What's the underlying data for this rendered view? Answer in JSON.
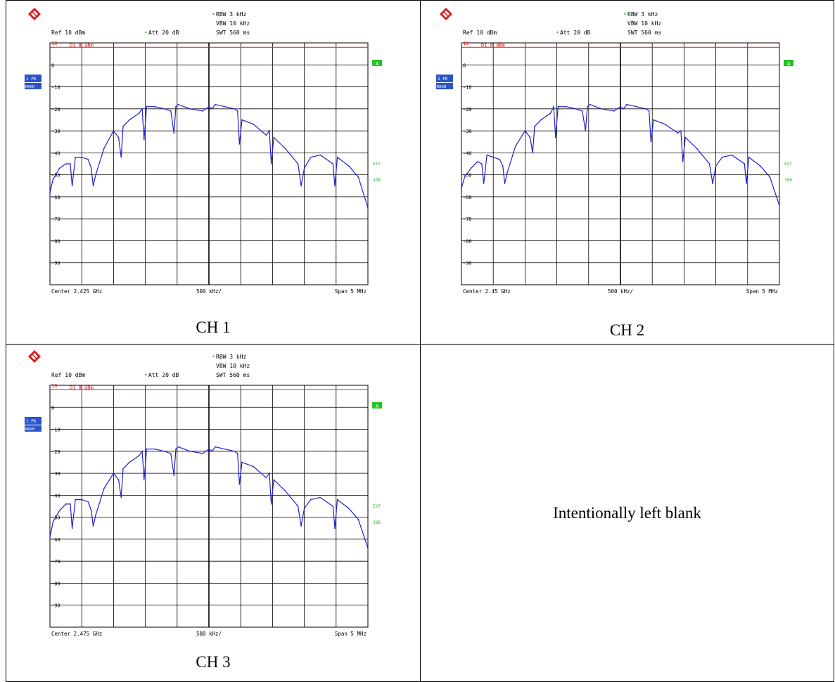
{
  "blank_panel": {
    "text": "Intentionally left blank"
  },
  "common": {
    "rbw": "RBW 3 kHz",
    "vbw": "VBW 10 kHz",
    "swt": "SWT 560 ms",
    "ref": "Ref  10 dBm",
    "att": "Att  20 dB",
    "limit_line": "D1  8 dBm",
    "trace_badge_1": "1 PK",
    "trace_badge_2": "MAXH",
    "marker_a": "A",
    "ext": "EXT",
    "db3": "3DB",
    "per_div": "500 kHz/",
    "span": "Span 5 MHz",
    "colors": {
      "trace": "#1f1fd0",
      "limit": "#d02020",
      "badge": "#2a55c8",
      "status": "#22c422"
    }
  },
  "chart_data": [
    {
      "type": "line",
      "caption": "CH 1",
      "center": "Center 2.425 GHz",
      "xlabel": "",
      "ylabel": "",
      "xlim": [
        -2.5,
        2.5
      ],
      "ylim": [
        -100,
        10
      ],
      "y_ticks": [
        "10",
        "0",
        "-10",
        "-20",
        "-30",
        "-40",
        "-50",
        "-60",
        "-70",
        "-80",
        "-90"
      ],
      "limit_dbm": 8,
      "series": [
        {
          "x": [
            -2.5,
            -2.45,
            -2.35,
            -2.25,
            -2.18,
            -2.15,
            -2.1,
            -2.0,
            -1.9,
            -1.85,
            -1.82,
            -1.78,
            -1.65,
            -1.5,
            -1.42,
            -1.38,
            -1.35,
            -1.25,
            -1.1,
            -1.05,
            -1.02,
            -0.98,
            -0.85,
            -0.7,
            -0.6,
            -0.55,
            -0.52,
            -0.48,
            -0.3,
            -0.1,
            0.0,
            0.05,
            0.1,
            0.4,
            0.45,
            0.48,
            0.52,
            0.7,
            0.9,
            0.95,
            0.98,
            1.02,
            1.2,
            1.4,
            1.45,
            1.5,
            1.6,
            1.75,
            1.95,
            1.98,
            2.02,
            2.2,
            2.35,
            2.5
          ],
          "y": [
            -58,
            -52,
            -47,
            -45,
            -45,
            -55,
            -42,
            -42,
            -43,
            -47,
            -55,
            -50,
            -38,
            -30,
            -33,
            -42,
            -28,
            -25,
            -22,
            -20,
            -34,
            -19,
            -19,
            -20,
            -21,
            -31,
            -19,
            -18,
            -20,
            -21,
            -19,
            -20,
            -18,
            -20,
            -21,
            -36,
            -25,
            -27,
            -32,
            -30,
            -45,
            -33,
            -38,
            -45,
            -55,
            -47,
            -42,
            -41,
            -45,
            -55,
            -42,
            -46,
            -51,
            -65
          ]
        }
      ]
    },
    {
      "type": "line",
      "caption": "CH 2",
      "center": "Center 2.45 GHz",
      "xlabel": "",
      "ylabel": "",
      "xlim": [
        -2.5,
        2.5
      ],
      "ylim": [
        -100,
        10
      ],
      "y_ticks": [
        "10",
        "0",
        "-10",
        "-20",
        "-30",
        "-40",
        "-50",
        "-60",
        "-70",
        "-80",
        "-90"
      ],
      "limit_dbm": 8,
      "series": [
        {
          "x": [
            -2.5,
            -2.45,
            -2.35,
            -2.25,
            -2.18,
            -2.15,
            -2.1,
            -2.0,
            -1.9,
            -1.85,
            -1.82,
            -1.78,
            -1.65,
            -1.5,
            -1.42,
            -1.38,
            -1.35,
            -1.25,
            -1.1,
            -1.05,
            -1.02,
            -0.98,
            -0.85,
            -0.7,
            -0.6,
            -0.55,
            -0.52,
            -0.48,
            -0.3,
            -0.1,
            0.0,
            0.05,
            0.1,
            0.4,
            0.45,
            0.48,
            0.52,
            0.7,
            0.9,
            0.95,
            0.98,
            1.02,
            1.2,
            1.4,
            1.45,
            1.5,
            1.6,
            1.75,
            1.95,
            1.98,
            2.02,
            2.2,
            2.35,
            2.5
          ],
          "y": [
            -56,
            -51,
            -47,
            -44,
            -45,
            -54,
            -41,
            -42,
            -43,
            -46,
            -54,
            -49,
            -37,
            -30,
            -33,
            -40,
            -28,
            -25,
            -22,
            -19,
            -33,
            -19,
            -19,
            -20,
            -21,
            -30,
            -19,
            -18,
            -20,
            -21,
            -19,
            -20,
            -18,
            -20,
            -21,
            -35,
            -25,
            -27,
            -31,
            -30,
            -44,
            -33,
            -38,
            -45,
            -54,
            -46,
            -42,
            -41,
            -45,
            -54,
            -42,
            -46,
            -51,
            -64
          ]
        }
      ]
    },
    {
      "type": "line",
      "caption": "CH 3",
      "center": "Center 2.475 GHz",
      "xlabel": "",
      "ylabel": "",
      "xlim": [
        -2.5,
        2.5
      ],
      "ylim": [
        -100,
        10
      ],
      "y_ticks": [
        "10",
        "0",
        "-10",
        "-20",
        "-30",
        "-40",
        "-50",
        "-60",
        "-70",
        "-80",
        "-90"
      ],
      "limit_dbm": 8,
      "series": [
        {
          "x": [
            -2.5,
            -2.45,
            -2.35,
            -2.25,
            -2.18,
            -2.15,
            -2.1,
            -2.0,
            -1.9,
            -1.85,
            -1.82,
            -1.78,
            -1.65,
            -1.5,
            -1.42,
            -1.38,
            -1.35,
            -1.25,
            -1.1,
            -1.05,
            -1.02,
            -0.98,
            -0.85,
            -0.7,
            -0.6,
            -0.55,
            -0.52,
            -0.48,
            -0.3,
            -0.1,
            0.0,
            0.05,
            0.1,
            0.4,
            0.45,
            0.48,
            0.52,
            0.7,
            0.9,
            0.95,
            0.98,
            1.02,
            1.2,
            1.4,
            1.45,
            1.5,
            1.6,
            1.75,
            1.95,
            1.98,
            2.02,
            2.2,
            2.35,
            2.5
          ],
          "y": [
            -59,
            -52,
            -47,
            -44,
            -44,
            -55,
            -42,
            -42,
            -43,
            -47,
            -54,
            -49,
            -37,
            -30,
            -33,
            -41,
            -28,
            -25,
            -22,
            -20,
            -33,
            -19,
            -19,
            -20,
            -21,
            -31,
            -19,
            -18,
            -20,
            -21,
            -19,
            -20,
            -18,
            -20,
            -21,
            -35,
            -25,
            -27,
            -32,
            -30,
            -44,
            -33,
            -38,
            -45,
            -54,
            -46,
            -42,
            -41,
            -45,
            -55,
            -42,
            -46,
            -51,
            -64
          ]
        }
      ]
    }
  ]
}
